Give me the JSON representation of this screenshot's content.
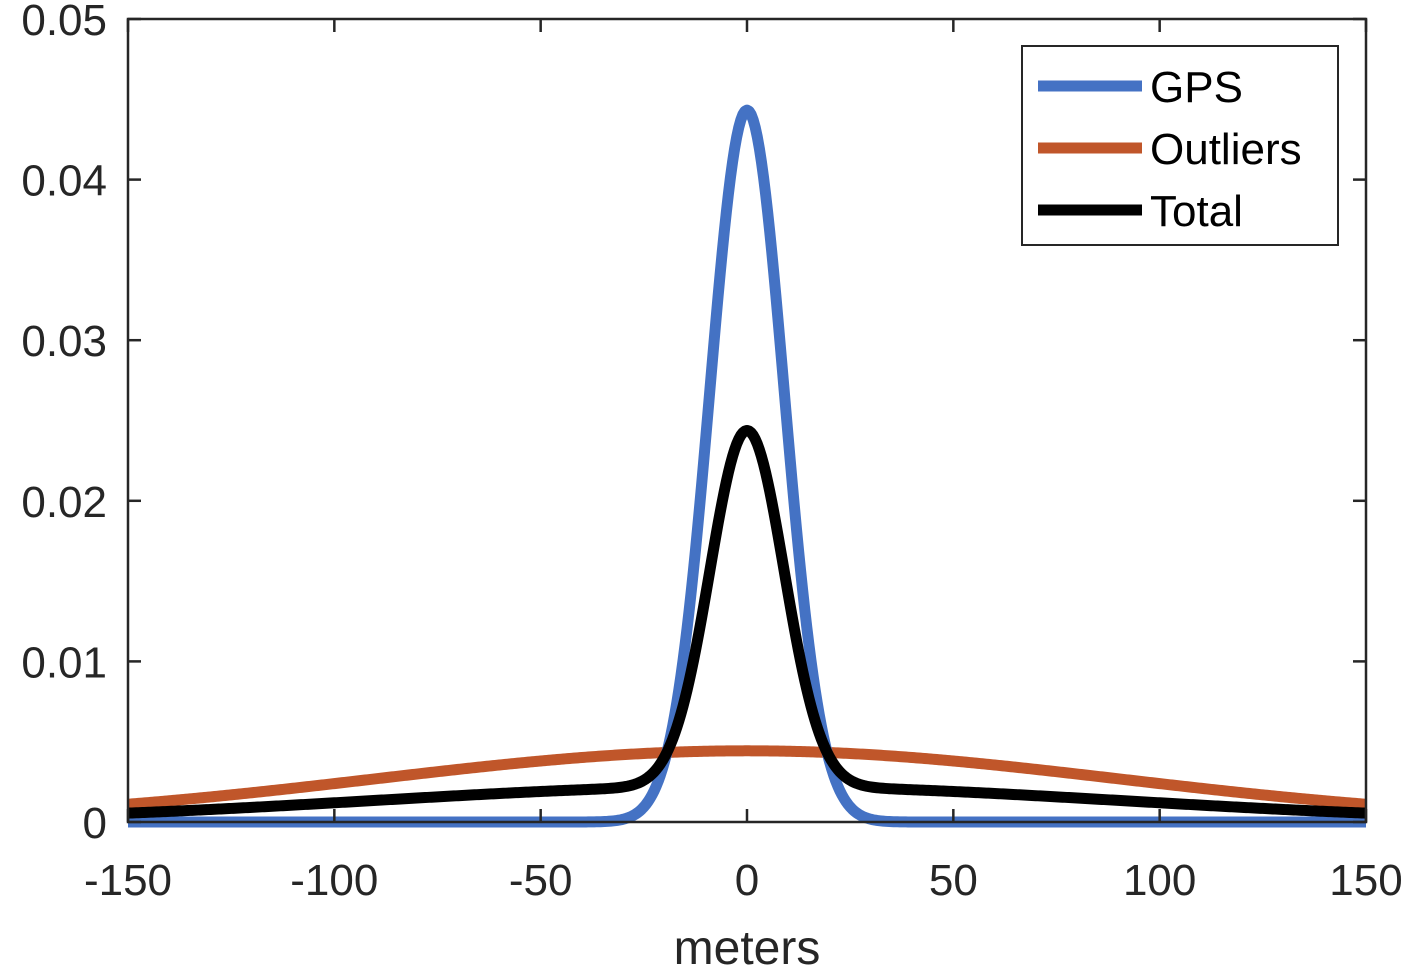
{
  "chart_data": {
    "type": "line",
    "title": "",
    "xlabel": "meters",
    "ylabel": "",
    "xlim": [
      -150,
      150
    ],
    "ylim": [
      0,
      0.05
    ],
    "xticks": [
      -150,
      -100,
      -50,
      0,
      50,
      100,
      150
    ],
    "xtick_labels": [
      "-150",
      "-100",
      "-50",
      "0",
      "50",
      "100",
      "150"
    ],
    "yticks": [
      0,
      0.01,
      0.02,
      0.03,
      0.04,
      0.05
    ],
    "ytick_labels": [
      "0",
      "0.01",
      "0.02",
      "0.03",
      "0.04",
      "0.05"
    ],
    "grid": false,
    "legend_position": "top-right",
    "x_step": 1,
    "series": [
      {
        "name": "GPS",
        "color": "#4472C4",
        "model": "gaussian",
        "mean": 0,
        "sigma": 9,
        "weight": 1,
        "sample_points": [
          [
            -150,
            0
          ],
          [
            -50,
            0.0
          ],
          [
            -20,
            0.0038
          ],
          [
            -10,
            0.024
          ],
          [
            0,
            0.0443
          ],
          [
            10,
            0.024
          ],
          [
            20,
            0.0038
          ],
          [
            50,
            0.0
          ],
          [
            150,
            0
          ]
        ]
      },
      {
        "name": "Outliers",
        "color": "#C0562A",
        "model": "gaussian",
        "mean": 0,
        "sigma": 90,
        "weight": 1,
        "sample_points": [
          [
            -150,
            0.0011
          ],
          [
            -100,
            0.0024
          ],
          [
            -50,
            0.0038
          ],
          [
            0,
            0.0044
          ],
          [
            50,
            0.0038
          ],
          [
            100,
            0.0024
          ],
          [
            150,
            0.0011
          ]
        ]
      },
      {
        "name": "Total",
        "color": "#000000",
        "model": "mixture",
        "components": [
          "GPS",
          "Outliers"
        ],
        "mix_weights": [
          0.5,
          0.5
        ],
        "sample_points": [
          [
            -150,
            0.0006
          ],
          [
            -100,
            0.0012
          ],
          [
            -50,
            0.0019
          ],
          [
            -20,
            0.0039
          ],
          [
            -10,
            0.014
          ],
          [
            0,
            0.0244
          ],
          [
            10,
            0.014
          ],
          [
            20,
            0.0039
          ],
          [
            50,
            0.0019
          ],
          [
            100,
            0.0012
          ],
          [
            150,
            0.0006
          ]
        ]
      }
    ]
  }
}
